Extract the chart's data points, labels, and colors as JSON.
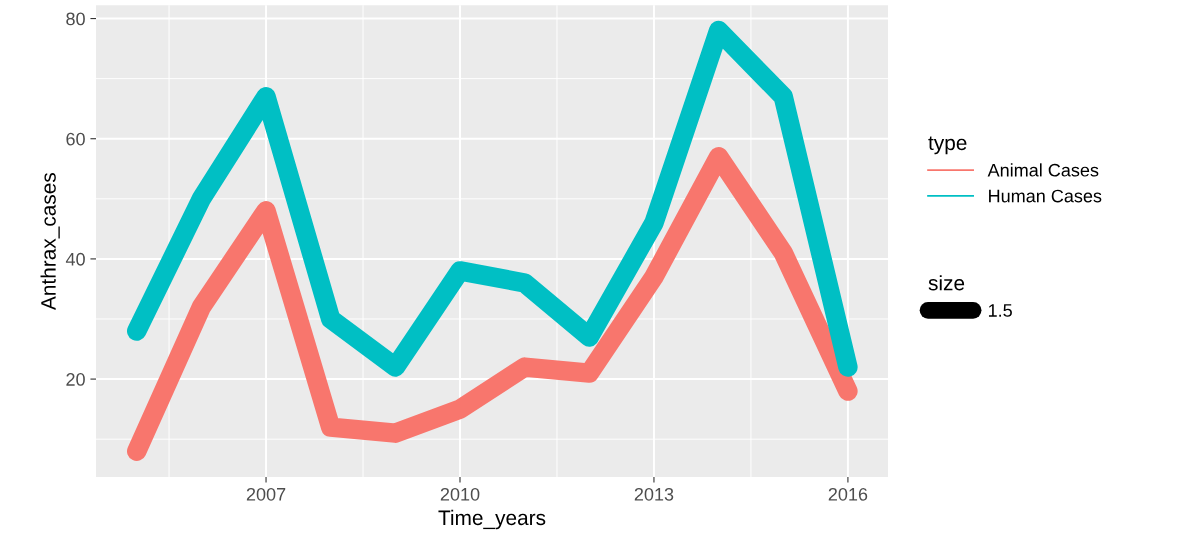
{
  "chart_data": {
    "type": "line",
    "xlabel": "Time_years",
    "ylabel": "Anthrax_cases",
    "legend_title": "type",
    "x": [
      2005,
      2006,
      2007,
      2008,
      2009,
      2010,
      2011,
      2012,
      2013,
      2014,
      2015,
      2016
    ],
    "series": [
      {
        "name": "Animal Cases",
        "color": "#f8766d",
        "values": [
          8,
          32,
          48,
          12,
          11,
          15,
          22,
          21,
          37,
          57,
          41,
          18
        ]
      },
      {
        "name": "Human Cases",
        "color": "#00bfc4",
        "values": [
          28,
          50,
          67,
          30,
          22,
          38,
          36,
          27,
          46,
          78,
          67,
          22
        ]
      }
    ],
    "xlim": [
      2004.37,
      2016.62
    ],
    "xticks": [
      2007,
      2010,
      2013,
      2016
    ],
    "ylim": [
      3.7,
      82.2
    ],
    "yticks": [
      20,
      40,
      60,
      80
    ],
    "grid": true,
    "legend": "right",
    "line_style": "solid",
    "annotations": [
      "size",
      "1.5"
    ]
  }
}
